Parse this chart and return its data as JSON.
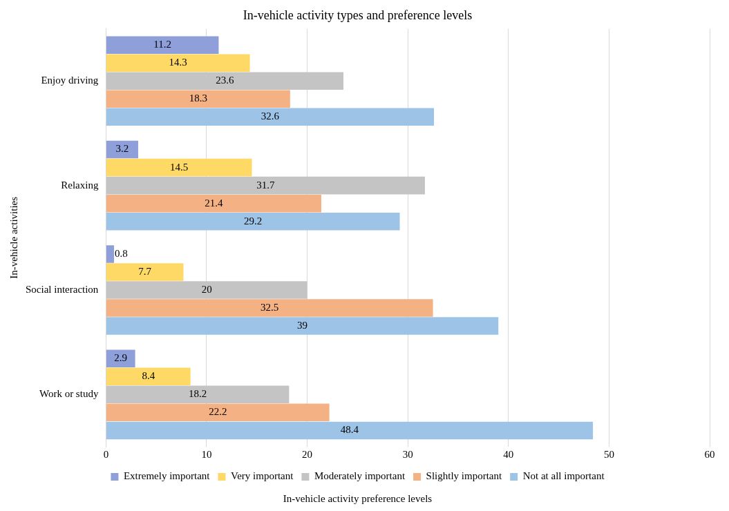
{
  "chart_data": {
    "type": "bar",
    "orientation": "horizontal",
    "title": "In-vehicle activity types and preference levels",
    "xlabel": "In-vehicle activity preference levels",
    "ylabel": "In-vehicle activities",
    "categories": [
      "Enjoy driving",
      "Relaxing",
      "Social interaction",
      "Work or study"
    ],
    "series": [
      {
        "name": "Extremely important",
        "color": "#8e9fd9",
        "values": [
          11.2,
          3.2,
          0.8,
          2.9
        ]
      },
      {
        "name": "Very important",
        "color": "#ffd966",
        "values": [
          14.3,
          14.5,
          7.7,
          8.4
        ]
      },
      {
        "name": "Moderately important",
        "color": "#c4c4c4",
        "values": [
          23.6,
          31.7,
          20,
          18.2
        ]
      },
      {
        "name": "Slightly important",
        "color": "#f4b183",
        "values": [
          18.3,
          21.4,
          32.5,
          22.2
        ]
      },
      {
        "name": "Not at all important",
        "color": "#9dc3e6",
        "values": [
          32.6,
          29.2,
          39,
          48.4
        ]
      }
    ],
    "xlim": [
      0,
      60
    ],
    "xticks": [
      0,
      10,
      20,
      30,
      40,
      50,
      60
    ],
    "grid": "x",
    "legend": "bottom",
    "data_labels": true
  }
}
